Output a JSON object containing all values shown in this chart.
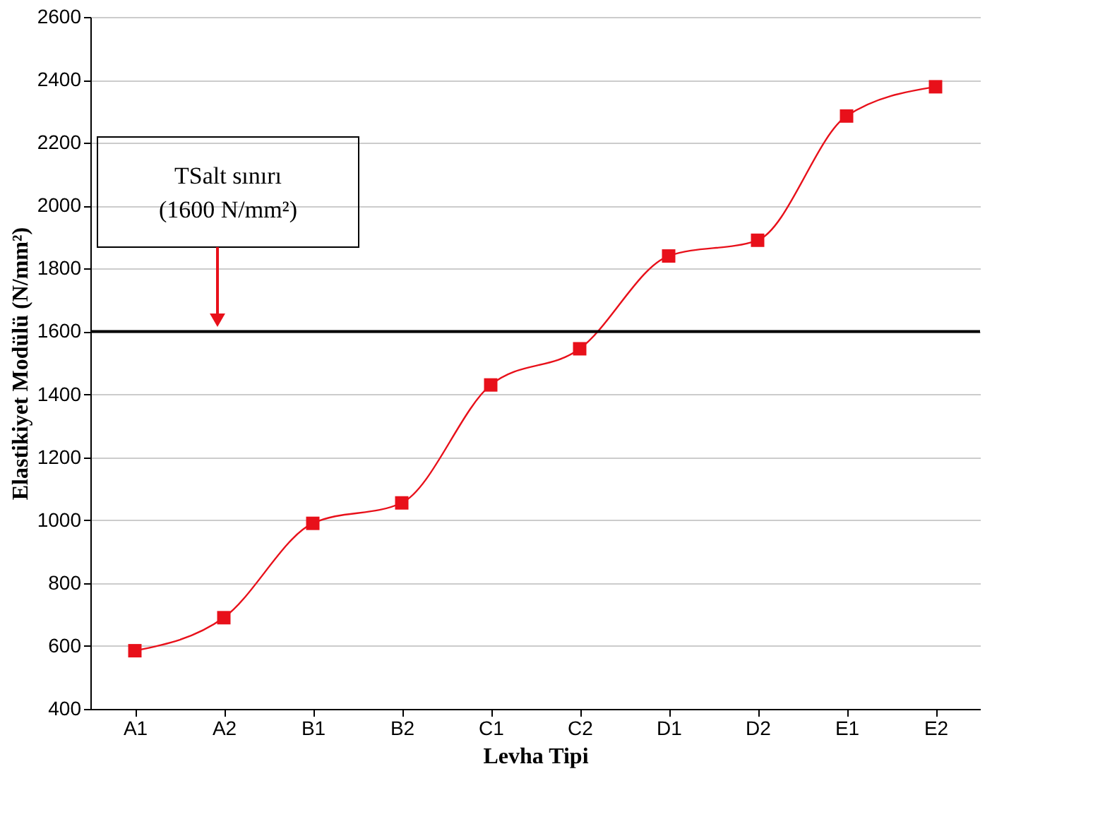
{
  "chart_data": {
    "type": "line",
    "xlabel": "Levha Tipi",
    "ylabel": "Elastikiyet Modülü (N/mm²)",
    "categories": [
      "A1",
      "A2",
      "B1",
      "B2",
      "C1",
      "C2",
      "D1",
      "D2",
      "E1",
      "E2"
    ],
    "series": [
      {
        "color": "#e8101a",
        "values": [
          585,
          690,
          990,
          1055,
          1430,
          1545,
          1840,
          1890,
          2285,
          2378
        ]
      }
    ],
    "marker": "square",
    "line_style": "solid",
    "ylim": [
      400,
      2600
    ],
    "yticks": [
      400,
      600,
      800,
      1000,
      1200,
      1400,
      1600,
      1800,
      2000,
      2200,
      2400,
      2600
    ],
    "grid": "y",
    "ref_lines": [
      {
        "axis": "y",
        "value": 1600,
        "label": "TSalt sınırı\n(1600 N/mm²)",
        "color": "#000000"
      }
    ]
  }
}
